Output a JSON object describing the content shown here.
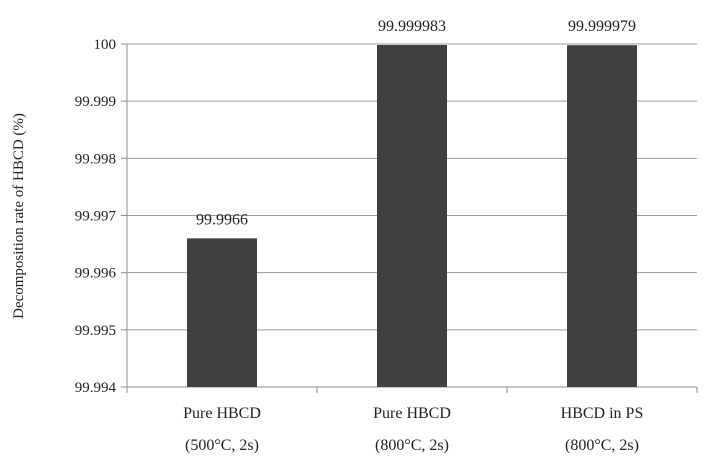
{
  "colors": {
    "bar": "#404040",
    "grid": "#9a9a9a",
    "axis": "#8c8c8c",
    "background": "#ffffff"
  },
  "chart_data": {
    "type": "bar",
    "title": "",
    "xlabel": "",
    "ylabel": "Decomposition rate of HBCD (%)",
    "ylim": [
      99.994,
      100
    ],
    "yticks": [
      "99.994",
      "99.995",
      "99.996",
      "99.997",
      "99.998",
      "99.999",
      "100"
    ],
    "grid": true,
    "legend": "none",
    "categories": [
      [
        "Pure HBCD",
        "(500°C, 2s)"
      ],
      [
        "Pure HBCD",
        "(800°C, 2s)"
      ],
      [
        "HBCD in PS",
        "(800°C, 2s)"
      ]
    ],
    "values": [
      99.9966,
      99.999983,
      99.999979
    ],
    "data_labels": [
      "99.9966",
      "99.999983",
      "99.999979"
    ]
  }
}
